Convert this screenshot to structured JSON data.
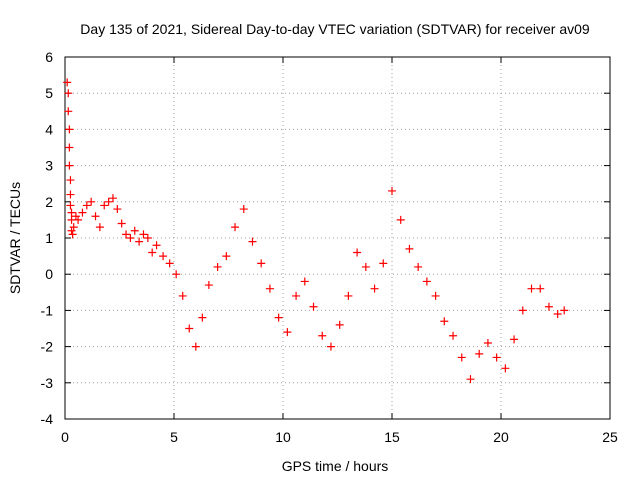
{
  "chart_data": {
    "type": "scatter",
    "title": "Day 135 of 2021, Sidereal Day-to-day VTEC variation (SDTVAR) for receiver av09",
    "xlabel": "GPS time / hours",
    "ylabel": "SDTVAR / TECUs",
    "xlim": [
      0,
      25
    ],
    "ylim": [
      -4,
      6
    ],
    "xticks": [
      0,
      5,
      10,
      15,
      20,
      25
    ],
    "yticks": [
      -4,
      -3,
      -2,
      -1,
      0,
      1,
      2,
      3,
      4,
      5,
      6
    ],
    "grid": true,
    "marker": "+",
    "series_color": "#ff0000",
    "series": [
      {
        "name": "SDTVAR",
        "x": [
          0.1,
          0.15,
          0.15,
          0.2,
          0.2,
          0.2,
          0.25,
          0.25,
          0.25,
          0.3,
          0.3,
          0.3,
          0.35,
          0.4,
          0.5,
          0.6,
          0.8,
          1.0,
          1.2,
          1.4,
          1.6,
          1.8,
          2.0,
          2.2,
          2.4,
          2.6,
          2.8,
          3.0,
          3.2,
          3.4,
          3.6,
          3.8,
          4.0,
          4.2,
          4.5,
          4.8,
          5.1,
          5.4,
          5.7,
          6.0,
          6.3,
          6.6,
          7.0,
          7.4,
          7.8,
          8.2,
          8.6,
          9.0,
          9.4,
          9.8,
          10.2,
          10.6,
          11.0,
          11.4,
          11.8,
          12.2,
          12.6,
          13.0,
          13.4,
          13.8,
          14.2,
          14.6,
          15.0,
          15.4,
          15.8,
          16.2,
          16.6,
          17.0,
          17.4,
          17.8,
          18.2,
          18.6,
          19.0,
          19.4,
          19.8,
          20.2,
          20.6,
          21.0,
          21.4,
          21.8,
          22.2,
          22.6,
          22.9
        ],
        "y": [
          5.3,
          5.0,
          4.5,
          4.0,
          3.5,
          3.0,
          2.6,
          2.2,
          1.9,
          1.7,
          1.5,
          1.2,
          1.1,
          1.3,
          1.6,
          1.5,
          1.7,
          1.9,
          2.0,
          1.6,
          1.3,
          1.9,
          2.0,
          2.1,
          1.8,
          1.4,
          1.1,
          1.0,
          1.2,
          0.9,
          1.1,
          1.0,
          0.6,
          0.8,
          0.5,
          0.3,
          0.0,
          -0.6,
          -1.5,
          -2.0,
          -1.2,
          -0.3,
          0.2,
          0.5,
          1.3,
          1.8,
          0.9,
          0.3,
          -0.4,
          -1.2,
          -1.6,
          -0.6,
          -0.2,
          -0.9,
          -1.7,
          -2.0,
          -1.4,
          -0.6,
          0.6,
          0.2,
          -0.4,
          0.3,
          2.3,
          1.5,
          0.7,
          0.2,
          -0.2,
          -0.6,
          -1.3,
          -1.7,
          -2.3,
          -2.9,
          -2.2,
          -1.9,
          -2.3,
          -2.6,
          -1.8,
          -1.0,
          -0.4,
          -0.4,
          -0.9,
          -1.1,
          -1.0
        ]
      }
    ]
  }
}
